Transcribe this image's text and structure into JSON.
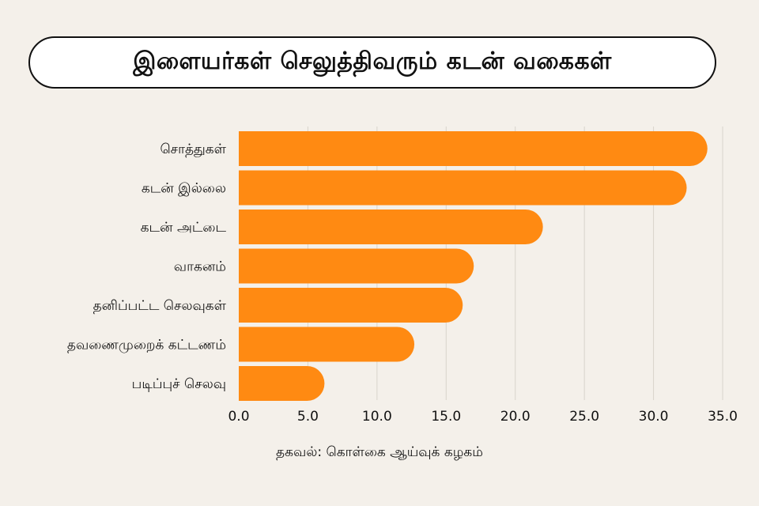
{
  "chart_data": {
    "type": "bar",
    "orientation": "horizontal",
    "title": "இளையர்கள் செலுத்திவரும் கடன் வகைகள்",
    "categories": [
      "சொத்துகள்",
      "கடன் இல்லை",
      "கடன் அட்டை",
      "வாகனம்",
      "தனிப்பட்ட செலவுகள்",
      "தவணைமுறைக் கட்டணம்",
      "படிப்புச் செலவு"
    ],
    "values": [
      33.9,
      32.4,
      22.0,
      17.0,
      16.2,
      12.7,
      6.2
    ],
    "xlim": [
      0,
      35
    ],
    "ticks": [
      "0.0",
      "5.0",
      "10.0",
      "15.0",
      "20.0",
      "25.0",
      "30.0",
      "35.0"
    ],
    "tick_values": [
      0,
      5,
      10,
      15,
      20,
      25,
      30,
      35
    ],
    "grid": true,
    "xlabel": "",
    "ylabel": "",
    "bar_color": "#ff8a12",
    "grid_color": "#d9d4cc"
  },
  "source": "தகவல்: கொள்கை ஆய்வுக் கழகம்"
}
